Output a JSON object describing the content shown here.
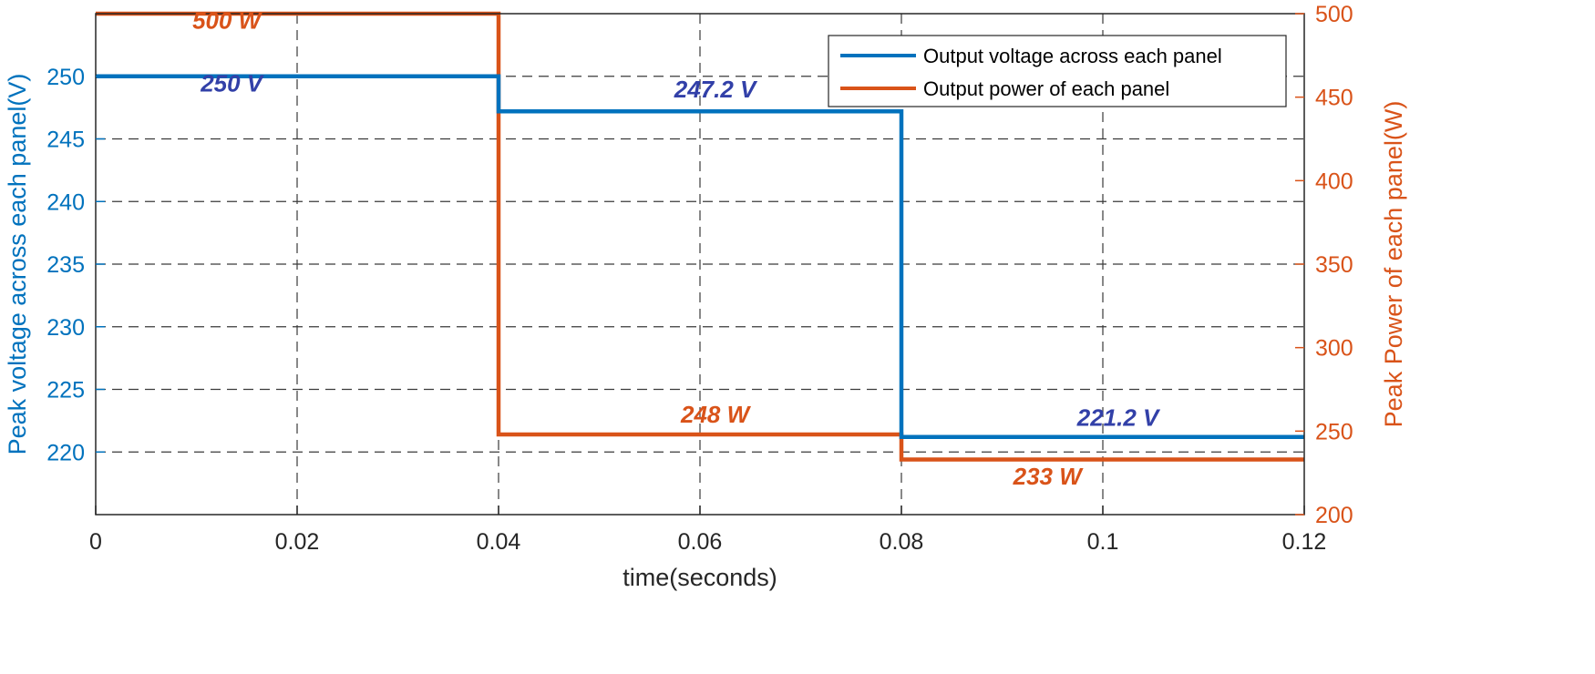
{
  "chart_data": {
    "type": "line",
    "title": "",
    "xlabel": "time(seconds)",
    "ylabel_left": "Peak voltage across each panel(V)",
    "ylabel_right": "Peak Power of each panel(W)",
    "xlim": [
      0,
      0.12
    ],
    "ylim_left": [
      215,
      255
    ],
    "ylim_right": [
      200,
      500
    ],
    "x_ticks": [
      0,
      0.02,
      0.04,
      0.06,
      0.08,
      0.1,
      0.12
    ],
    "x_tick_labels": [
      "0",
      "0.02",
      "0.04",
      "0.06",
      "0.08",
      "0.1",
      "0.12"
    ],
    "y_left_ticks": [
      220,
      225,
      230,
      235,
      240,
      245,
      250
    ],
    "y_left_tick_labels": [
      "220",
      "225",
      "230",
      "235",
      "240",
      "245",
      "250"
    ],
    "y_right_ticks": [
      200,
      250,
      300,
      350,
      400,
      450,
      500
    ],
    "y_right_tick_labels": [
      "200",
      "250",
      "300",
      "350",
      "400",
      "450",
      "500"
    ],
    "grid": true,
    "legend_position": "top-right",
    "series": [
      {
        "name": "Output voltage across each panel",
        "axis": "left",
        "color": "#0072BD",
        "x": [
          0,
          0.04,
          0.04,
          0.08,
          0.08,
          0.12
        ],
        "y": [
          250,
          250,
          247.2,
          247.2,
          221.2,
          221.2
        ]
      },
      {
        "name": "Output power of each panel",
        "axis": "right",
        "color": "#D95319",
        "x": [
          0,
          0.04,
          0.04,
          0.08,
          0.08,
          0.12
        ],
        "y": [
          500,
          500,
          248,
          248,
          233,
          233
        ]
      }
    ],
    "annotations": [
      {
        "text": "500 W",
        "x": 0.013,
        "y": 491,
        "axis": "right",
        "color": "#D95319"
      },
      {
        "text": "250 V",
        "x": 0.0135,
        "y": 248.8,
        "axis": "left",
        "color": "#3240A8"
      },
      {
        "text": "247.2 V",
        "x": 0.0615,
        "y": 248.3,
        "axis": "left",
        "color": "#3240A8"
      },
      {
        "text": "248 W",
        "x": 0.0615,
        "y": 255,
        "axis": "right",
        "color": "#D95319"
      },
      {
        "text": "221.2 V",
        "x": 0.1015,
        "y": 222.1,
        "axis": "left",
        "color": "#3240A8"
      },
      {
        "text": "233 W",
        "x": 0.0945,
        "y": 218,
        "axis": "right",
        "color": "#D95319"
      }
    ]
  }
}
